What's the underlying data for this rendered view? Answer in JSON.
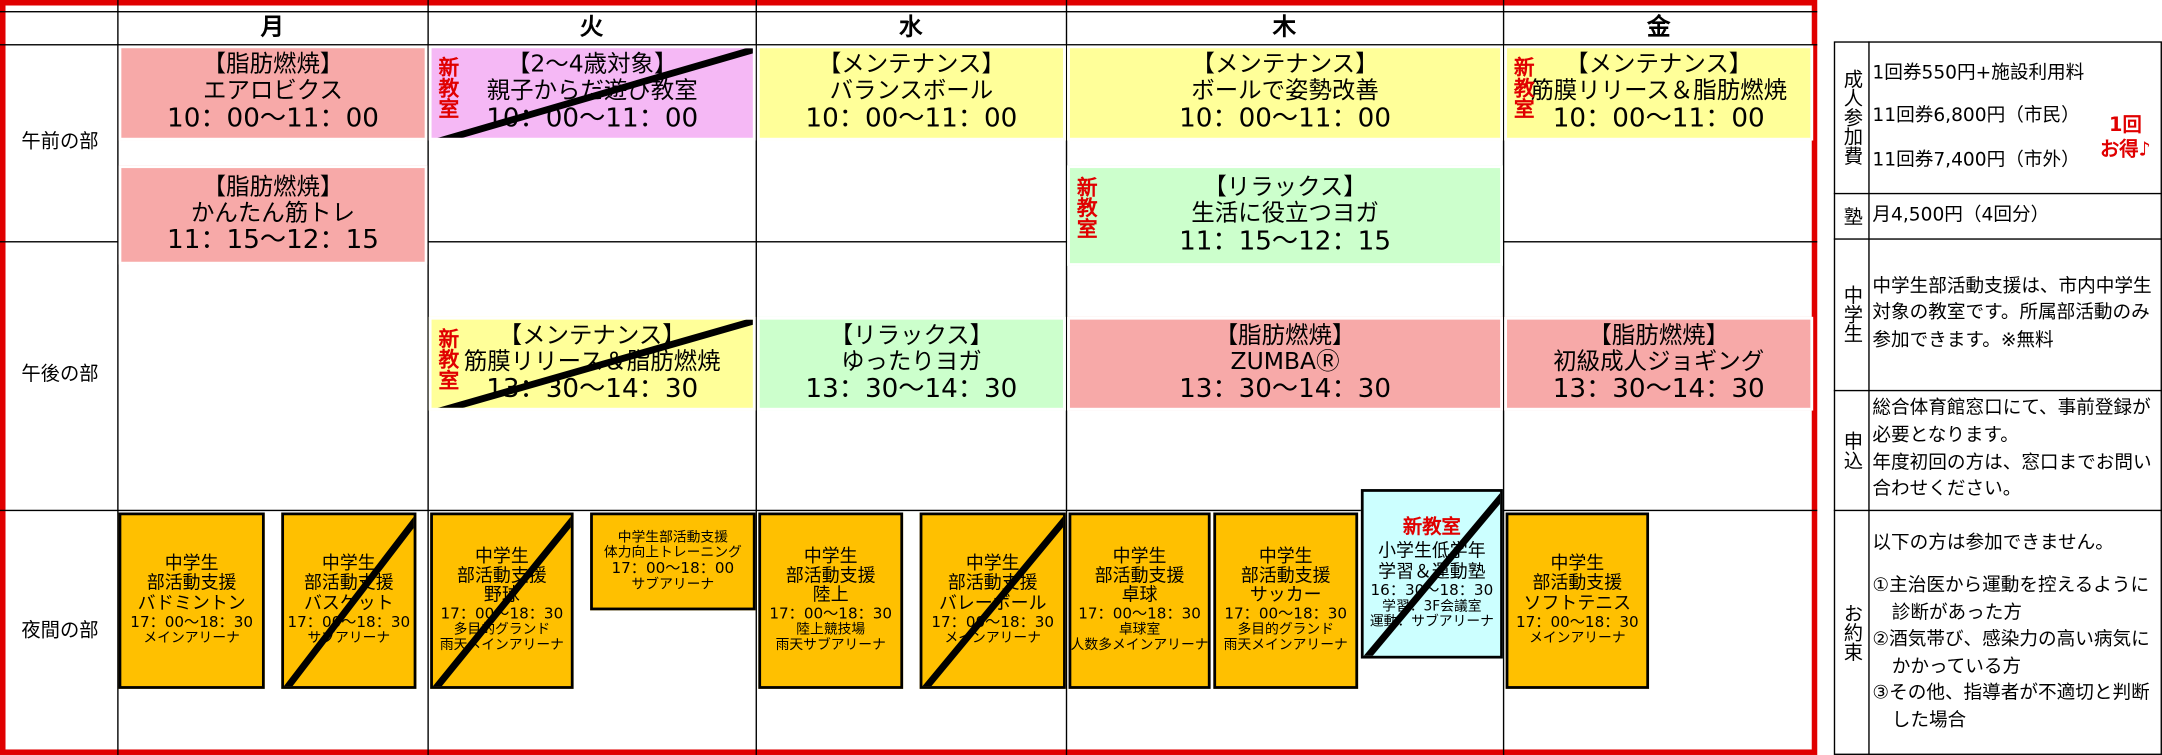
{
  "header": {
    "days": [
      "月",
      "火",
      "水",
      "木",
      "金"
    ]
  },
  "rows": [
    "午前の部",
    "午後の部",
    "夜間の部"
  ],
  "new_label": "新教室",
  "classes": [
    {
      "lines": [
        "【脂肪燃焼】",
        "エアロビクス",
        "10：00～11：00"
      ]
    },
    {
      "lines": [
        "【2～4歳対象】",
        "親子からだ遊び教室",
        "10：00～11：00"
      ],
      "new": true,
      "crossed": true
    },
    {
      "lines": [
        "【メンテナンス】",
        "バランスボール",
        "10：00～11：00"
      ]
    },
    {
      "lines": [
        "【メンテナンス】",
        "ボールで姿勢改善",
        "10：00～11：00"
      ]
    },
    {
      "lines": [
        "【メンテナンス】",
        "筋膜リリース＆脂肪燃焼",
        "10：00～11：00"
      ],
      "new": true
    },
    {
      "lines": [
        "【脂肪燃焼】",
        "かんたん筋トレ",
        "11：15～12：15"
      ]
    },
    {
      "lines": [
        "【リラックス】",
        "生活に役立つヨガ",
        "11：15～12：15"
      ],
      "new": true
    },
    {
      "lines": [
        "【メンテナンス】",
        "筋膜リリース＆脂肪燃焼",
        "13：30～14：30"
      ],
      "new": true,
      "crossed": true
    },
    {
      "lines": [
        "【リラックス】",
        "ゆったりヨガ",
        "13：30～14：30"
      ]
    },
    {
      "lines": [
        "【脂肪燃焼】",
        "ZUMBAⓇ",
        "13：30～14：30"
      ]
    },
    {
      "lines": [
        "【脂肪燃焼】",
        "初級成人ジョギング",
        "13：30～14：30"
      ]
    },
    {
      "lines": [
        "中学生",
        "部活動支援",
        "バドミントン"
      ],
      "details": [
        "17：00～18：30",
        "メインアリーナ"
      ]
    },
    {
      "lines": [
        "中学生",
        "部活動支援",
        "バスケット"
      ],
      "details": [
        "17：00～18：30",
        "サブアリーナ"
      ],
      "crossed": true
    },
    {
      "lines": [
        "中学生",
        "部活動支援",
        "野球"
      ],
      "details": [
        "17：00～18：30",
        "多目的グランド",
        "雨天メインアリーナ"
      ],
      "crossed": true
    },
    {
      "lines": [
        "中学生部活動支援",
        "体力向上トレーニング"
      ],
      "details": [
        "17：00～18：00",
        "サブアリーナ"
      ]
    },
    {
      "lines": [
        "中学生",
        "部活動支援",
        "陸上"
      ],
      "details": [
        "17：00～18：30",
        "陸上競技場",
        "雨天サブアリーナ"
      ]
    },
    {
      "lines": [
        "中学生",
        "部活動支援",
        "バレーボール"
      ],
      "details": [
        "17：00～18：30",
        "メインアリーナ"
      ],
      "crossed": true
    },
    {
      "lines": [
        "中学生",
        "部活動支援",
        "卓球"
      ],
      "details": [
        "17：00～18：30",
        "卓球室",
        "人数多メインアリーナ"
      ]
    },
    {
      "lines": [
        "中学生",
        "部活動支援",
        "サッカー"
      ],
      "details": [
        "17：00～18：30",
        "多目的グランド",
        "雨天メインアリーナ"
      ]
    },
    {
      "head": "新教室",
      "lines": [
        "小学生低学年",
        "学習＆運動塾"
      ],
      "details": [
        "16：30～18：30",
        "学習：3F会議室",
        "運動：サブアリーナ"
      ],
      "crossed": true
    },
    {
      "lines": [
        "中学生",
        "部活動支援",
        "ソフトテニス"
      ],
      "details": [
        "17：00～18：30",
        "メインアリーナ"
      ]
    }
  ],
  "info": [
    {
      "label": "成人参加費",
      "lines": [
        "1回券550円+施設利用料",
        "11回券6,800円（市民）",
        "11回券7,400円（市外）"
      ],
      "note": [
        "1回",
        "お得♪"
      ]
    },
    {
      "label": "塾",
      "lines": [
        "月4,500円（4回分）"
      ]
    },
    {
      "label": "中学生",
      "lines": [
        "中学生部活動支援は、市内中学生対象の教室です。所属部活動のみ参加できます。※無料"
      ]
    },
    {
      "label": "申込",
      "lines": [
        "総合体育館窓口にて、事前登録が必要となります。",
        "年度初回の方は、窓口までお問い合わせください。"
      ]
    },
    {
      "label": "お約束",
      "lines": [
        "以下の方は参加できません。",
        "①主治医から運動を控えるように診断があった方",
        "②酒気帯び、感染力の高い病気にかかっている方",
        "③その他、指導者が不適切と判断した場合"
      ]
    }
  ]
}
